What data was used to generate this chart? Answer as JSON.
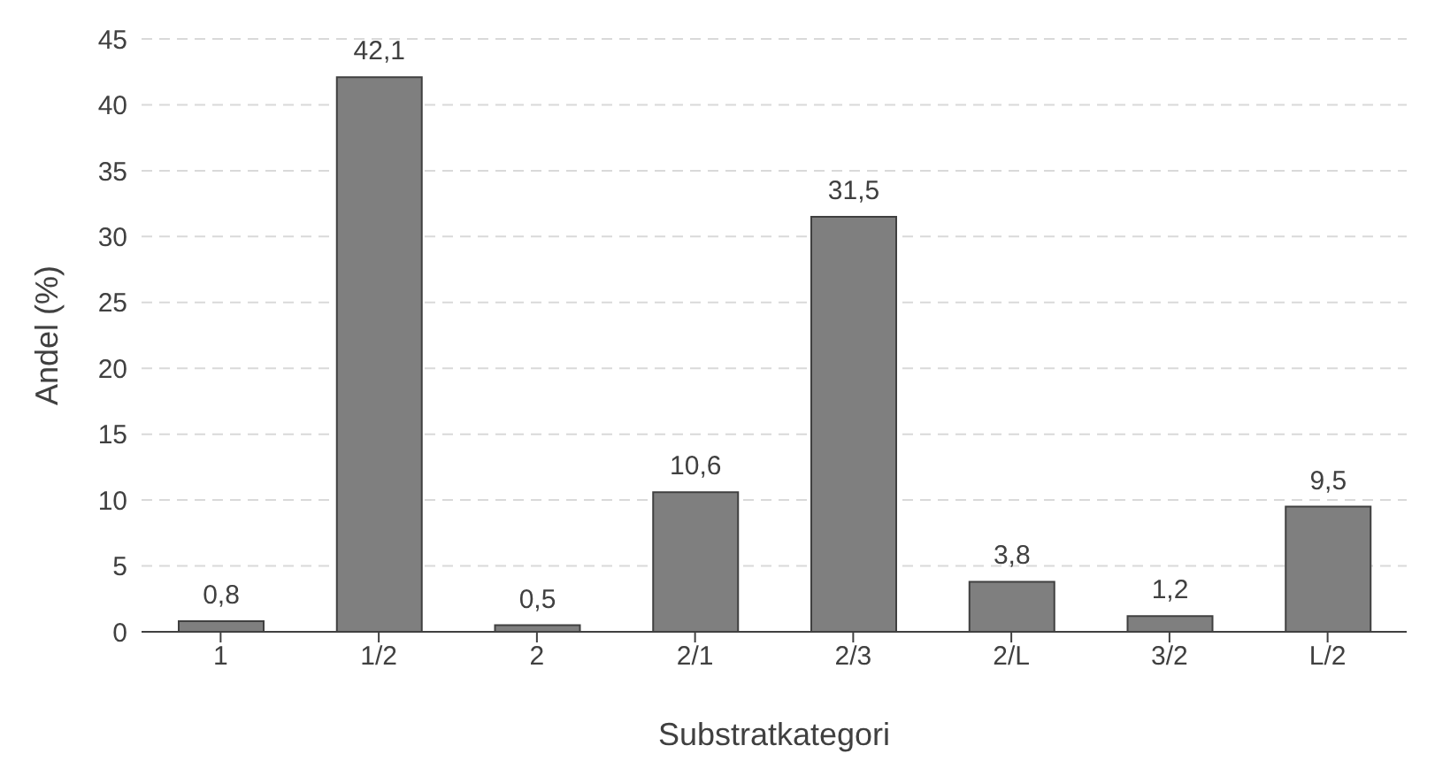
{
  "chart_data": {
    "type": "bar",
    "xlabel": "Substratkategori",
    "ylabel": "Andel (%)",
    "categories": [
      "1",
      "1/2",
      "2",
      "2/1",
      "2/3",
      "2/L",
      "3/2",
      "L/2"
    ],
    "values": [
      0.8,
      42.1,
      0.5,
      10.6,
      31.5,
      3.8,
      1.2,
      9.5
    ],
    "value_labels": [
      "0,8",
      "42,1",
      "0,5",
      "10,6",
      "31,5",
      "3,8",
      "1,2",
      "9,5"
    ],
    "color": "#7f7f7f",
    "ylim": [
      0,
      45
    ],
    "yticks": [
      0,
      5,
      10,
      15,
      20,
      25,
      30,
      35,
      40,
      45
    ],
    "grid": "y"
  }
}
